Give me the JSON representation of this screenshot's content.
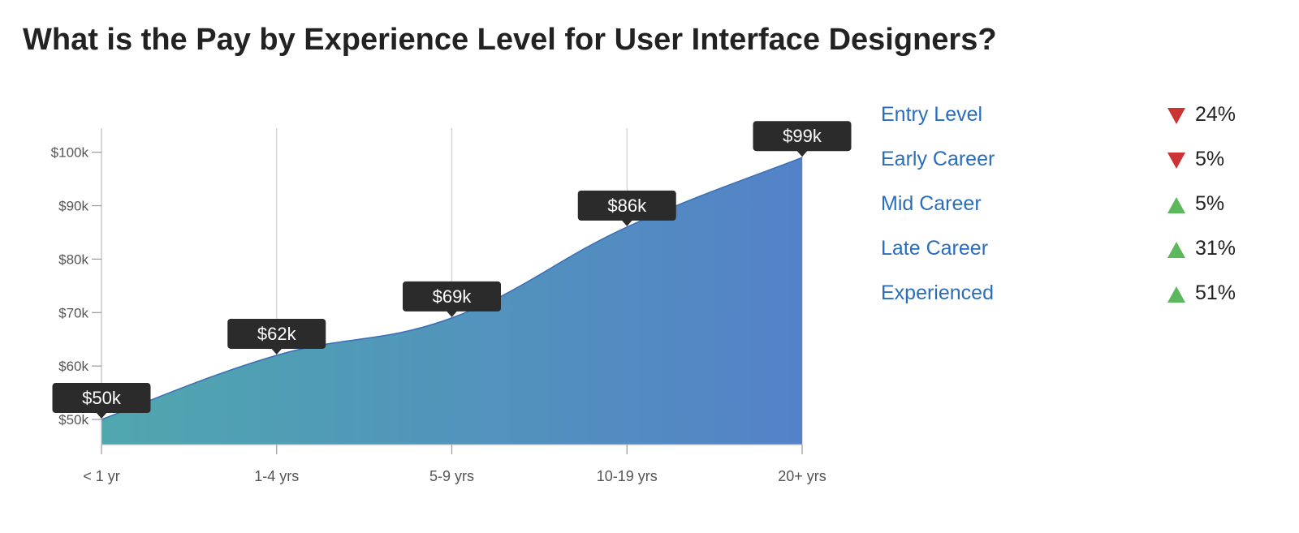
{
  "title": "What is the Pay by Experience Level for User Interface Designers?",
  "chart_data": {
    "type": "area",
    "categories": [
      "< 1 yr",
      "1-4 yrs",
      "5-9 yrs",
      "10-19 yrs",
      "20+ yrs"
    ],
    "values": [
      50,
      62,
      69,
      86,
      99
    ],
    "data_labels": [
      "$50k",
      "$62k",
      "$69k",
      "$86k",
      "$99k"
    ],
    "y_ticks": [
      50,
      60,
      70,
      80,
      90,
      100
    ],
    "y_tick_labels": [
      "$50k",
      "$60k",
      "$70k",
      "$80k",
      "$90k",
      "$100k"
    ],
    "ylim": [
      45.3,
      104.5
    ],
    "ylabel": "",
    "xlabel": "",
    "grid": "vertical",
    "colors": {
      "gradient_start": "#4fa7ae",
      "gradient_end": "#5482c8",
      "stroke": "#3a6fb5",
      "label_bg": "#2b2b2b",
      "label_text": "#ffffff"
    }
  },
  "legend": [
    {
      "label": "Entry Level",
      "direction": "down",
      "value": "24%"
    },
    {
      "label": "Early Career",
      "direction": "down",
      "value": "5%"
    },
    {
      "label": "Mid Career",
      "direction": "up",
      "value": "5%"
    },
    {
      "label": "Late Career",
      "direction": "up",
      "value": "31%"
    },
    {
      "label": "Experienced",
      "direction": "up",
      "value": "51%"
    }
  ]
}
